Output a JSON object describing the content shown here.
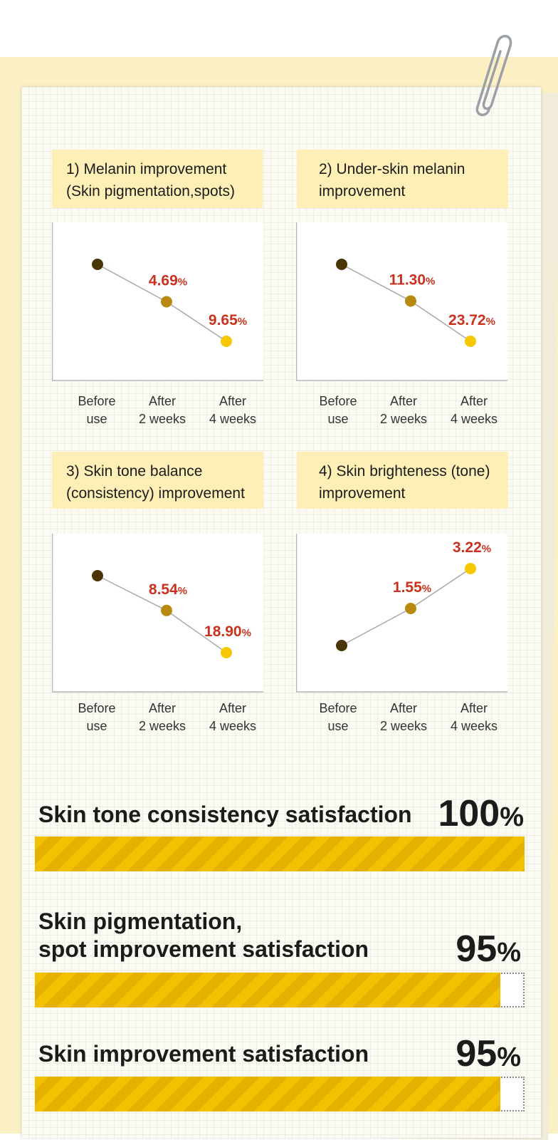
{
  "charts": [
    {
      "title_line1": "1) Melanin improvement",
      "title_line2": "(Skin pigmentation,spots)",
      "labels": [
        "4.69",
        "9.65"
      ],
      "unit": "%"
    },
    {
      "title_line1": "2) Under-skin melanin",
      "title_line2": "improvement",
      "labels": [
        "11.30",
        "23.72"
      ],
      "unit": "%"
    },
    {
      "title_line1": "3) Skin tone balance",
      "title_line2": "(consistency) improvement",
      "labels": [
        "8.54",
        "18.90"
      ],
      "unit": "%"
    },
    {
      "title_line1": "4) Skin brighteness (tone)",
      "title_line2": "improvement",
      "labels": [
        "1.55",
        "3.22"
      ],
      "unit": "%"
    }
  ],
  "x_axis": [
    {
      "line1": "Before",
      "line2": "use"
    },
    {
      "line1": "After",
      "line2": "2 weeks"
    },
    {
      "line1": "After",
      "line2": "4 weeks"
    }
  ],
  "satisfaction": [
    {
      "label_line1": "Skin tone consistency satisfaction",
      "label_line2": "",
      "value": "100",
      "unit": "%"
    },
    {
      "label_line1": "Skin pigmentation,",
      "label_line2": "spot improvement satisfaction",
      "value": "95",
      "unit": "%"
    },
    {
      "label_line1": "Skin improvement satisfaction",
      "label_line2": "",
      "value": "95",
      "unit": "%"
    }
  ],
  "chart_data": [
    {
      "type": "line",
      "title": "1) Melanin improvement (Skin pigmentation,spots)",
      "categories": [
        "Before use",
        "After 2 weeks",
        "After 4 weeks"
      ],
      "values": [
        0,
        4.69,
        9.65
      ],
      "direction": "decrease",
      "data_labels": [
        "",
        "4.69%",
        "9.65%"
      ],
      "point_colors": [
        "#4a3505",
        "#b88a10",
        "#f5c800"
      ]
    },
    {
      "type": "line",
      "title": "2) Under-skin melanin improvement",
      "categories": [
        "Before use",
        "After 2 weeks",
        "After 4 weeks"
      ],
      "values": [
        0,
        11.3,
        23.72
      ],
      "direction": "decrease",
      "data_labels": [
        "",
        "11.30%",
        "23.72%"
      ],
      "point_colors": [
        "#4a3505",
        "#b88a10",
        "#f5c800"
      ]
    },
    {
      "type": "line",
      "title": "3) Skin tone balance (consistency) improvement",
      "categories": [
        "Before use",
        "After 2 weeks",
        "After 4 weeks"
      ],
      "values": [
        0,
        8.54,
        18.9
      ],
      "direction": "decrease",
      "data_labels": [
        "",
        "8.54%",
        "18.90%"
      ],
      "point_colors": [
        "#4a3505",
        "#b88a10",
        "#f5c800"
      ]
    },
    {
      "type": "line",
      "title": "4) Skin brighteness (tone) improvement",
      "categories": [
        "Before use",
        "After 2 weeks",
        "After 4 weeks"
      ],
      "values": [
        0,
        1.55,
        3.22
      ],
      "direction": "increase",
      "data_labels": [
        "",
        "1.55%",
        "3.22%"
      ],
      "point_colors": [
        "#4a3505",
        "#b88a10",
        "#f5c800"
      ]
    },
    {
      "type": "bar",
      "orientation": "horizontal",
      "title": "",
      "categories": [
        "Skin tone consistency satisfaction",
        "Skin pigmentation, spot improvement satisfaction",
        "Skin improvement satisfaction"
      ],
      "values": [
        100,
        95,
        95
      ],
      "xlim": [
        0,
        100
      ],
      "unit": "%"
    }
  ],
  "colors": {
    "label_red": "#c8321e",
    "line_gray": "#aaaaaa",
    "bar_yellow": "#f2c100",
    "panel_title_bg": "#fdefb6"
  }
}
